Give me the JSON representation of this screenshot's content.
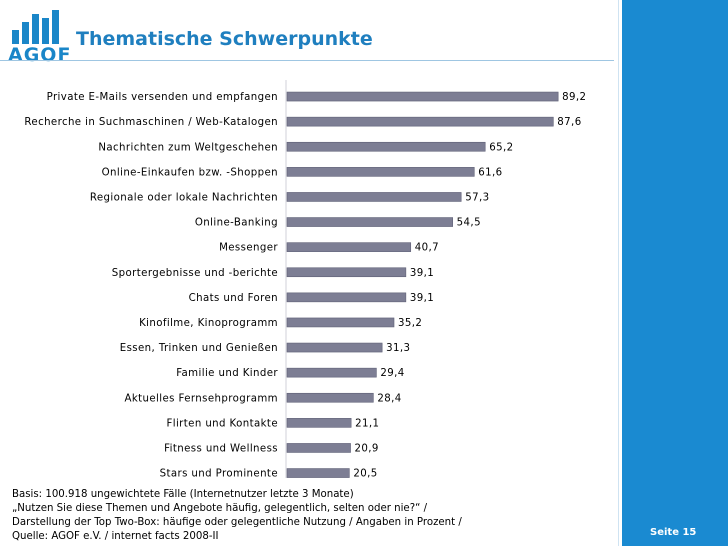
{
  "header": {
    "logo_text": "AGOF",
    "title": "Thematische Schwerpunkte"
  },
  "colors": {
    "bar": "#7d7e94",
    "bar_edge": "#5f6076",
    "brand_blue": "#1a8ad1",
    "title_blue": "#1f7fbf"
  },
  "chart_data": {
    "type": "bar",
    "orientation": "horizontal",
    "title": "Thematische Schwerpunkte",
    "xlabel": "",
    "ylabel": "",
    "xlim": [
      0,
      100
    ],
    "grid": false,
    "categories": [
      "Private E-Mails versenden und empfangen",
      "Recherche in Suchmaschinen / Web-Katalogen",
      "Nachrichten zum Weltgeschehen",
      "Online-Einkaufen bzw. -Shoppen",
      "Regionale oder lokale Nachrichten",
      "Online-Banking",
      "Messenger",
      "Sportergebnisse und -berichte",
      "Chats und Foren",
      "Kinofilme, Kinoprogramm",
      "Essen, Trinken und Genießen",
      "Familie und Kinder",
      "Aktuelles Fernsehprogramm",
      "Flirten und Kontakte",
      "Fitness und Wellness",
      "Stars und Prominente"
    ],
    "values": [
      89.2,
      87.6,
      65.2,
      61.6,
      57.3,
      54.5,
      40.7,
      39.1,
      39.1,
      35.2,
      31.3,
      29.4,
      28.4,
      21.1,
      20.9,
      20.5
    ],
    "value_labels": [
      "89,2",
      "87,6",
      "65,2",
      "61,6",
      "57,3",
      "54,5",
      "40,7",
      "39,1",
      "39,1",
      "35,2",
      "31,3",
      "29,4",
      "28,4",
      "21,1",
      "20,9",
      "20,5"
    ]
  },
  "footer": {
    "line1": "Basis: 100.918 ungewichtete Fälle (Internetnutzer letzte 3 Monate)",
    "line2": "„Nutzen Sie diese Themen und Angebote häufig, gelegentlich, selten oder nie?“ /",
    "line3": "Darstellung der Top Two-Box: häufige oder gelegentliche Nutzung / Angaben in Prozent /",
    "line4": "Quelle: AGOF e.V. / internet facts 2008-II",
    "page_label": "Seite 15"
  }
}
